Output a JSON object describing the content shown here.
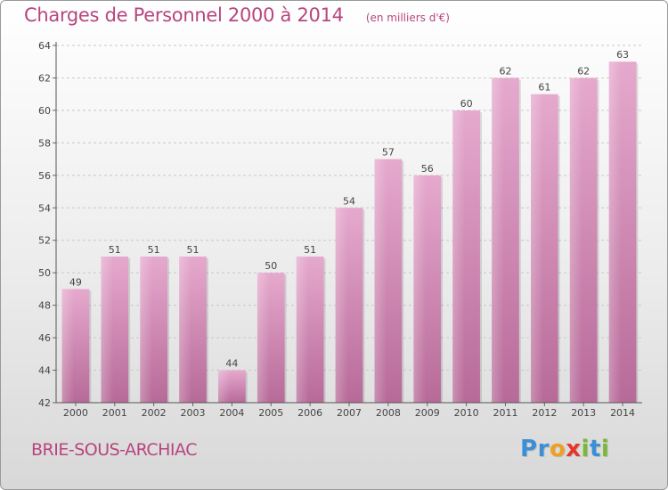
{
  "title": "Charges de Personnel 2000 à 2014",
  "unit_note": "(en milliers d'€)",
  "city": "BRIE-SOUS-ARCHIAC",
  "logo": {
    "letters": [
      "P",
      "r",
      "o",
      "x",
      "i",
      "t",
      "i"
    ],
    "colors": [
      "#3b8fd6",
      "#3b8fd6",
      "#f0a020",
      "#e8352a",
      "#7ab83a",
      "#3b8fd6",
      "#7ab83a"
    ]
  },
  "colors": {
    "bar_light": "#e6a9ce",
    "bar_dark": "#b76a98",
    "title": "#b8457f"
  },
  "chart_data": {
    "type": "bar",
    "categories": [
      "2000",
      "2001",
      "2002",
      "2003",
      "2004",
      "2005",
      "2006",
      "2007",
      "2008",
      "2009",
      "2010",
      "2011",
      "2012",
      "2013",
      "2014"
    ],
    "values": [
      49,
      51,
      51,
      51,
      44,
      50,
      51,
      54,
      57,
      56,
      60,
      62,
      61,
      62,
      63
    ],
    "title": "Charges de Personnel 2000 à 2014",
    "xlabel": "",
    "ylabel": "",
    "ylim": [
      42,
      64
    ],
    "yticks": [
      42,
      44,
      46,
      48,
      50,
      52,
      54,
      56,
      58,
      60,
      62,
      64
    ],
    "grid": true,
    "data_labels": true
  }
}
